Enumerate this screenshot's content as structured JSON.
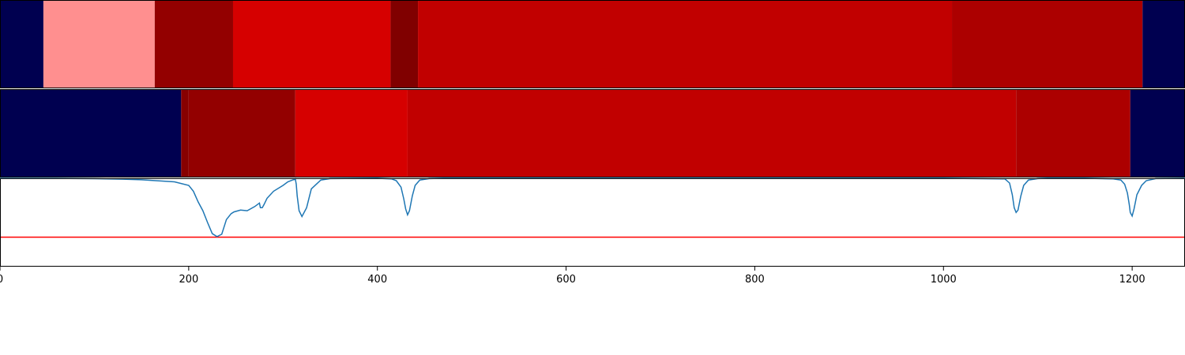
{
  "chart_data": [
    {
      "type": "heatmap",
      "segments": [
        {
          "start": 0,
          "end": 46,
          "color": "#000050"
        },
        {
          "start": 46,
          "end": 164,
          "color": "#ff8f8f"
        },
        {
          "start": 164,
          "end": 247,
          "color": "#930000"
        },
        {
          "start": 247,
          "end": 414,
          "color": "#d60000"
        },
        {
          "start": 414,
          "end": 443,
          "color": "#800000"
        },
        {
          "start": 443,
          "end": 1009,
          "color": "#c10000"
        },
        {
          "start": 1009,
          "end": 1211,
          "color": "#ac0000"
        },
        {
          "start": 1211,
          "end": 1256,
          "color": "#000050"
        }
      ]
    },
    {
      "type": "heatmap",
      "segments": [
        {
          "start": 0,
          "end": 192,
          "color": "#000050"
        },
        {
          "start": 192,
          "end": 200,
          "color": "#870000"
        },
        {
          "start": 200,
          "end": 313,
          "color": "#930000"
        },
        {
          "start": 313,
          "end": 432,
          "color": "#d60000"
        },
        {
          "start": 432,
          "end": 1077,
          "color": "#c10000"
        },
        {
          "start": 1077,
          "end": 1198,
          "color": "#ac0000"
        },
        {
          "start": 1198,
          "end": 1256,
          "color": "#000050"
        }
      ]
    },
    {
      "type": "line",
      "xlim": [
        0,
        1256
      ],
      "ylim": [
        -0.5,
        1.0
      ],
      "xticks": [
        0,
        200,
        400,
        600,
        800,
        1000,
        1200
      ],
      "threshold": 0.0,
      "threshold_color": "#ff0000",
      "line_color": "#1f77b4",
      "series": [
        {
          "x": [
            0,
            60,
            100,
            130,
            150,
            165,
            185,
            200,
            205,
            210,
            215,
            220,
            225,
            230,
            235,
            240,
            245,
            248,
            255,
            262,
            270,
            275,
            276,
            278,
            280,
            283,
            290,
            300,
            305,
            310,
            312,
            313,
            314,
            315,
            317,
            320,
            325,
            330,
            340,
            350,
            400,
            415,
            420,
            425,
            428,
            430,
            432,
            434,
            437,
            440,
            445,
            455,
            470,
            1000,
            1065,
            1070,
            1073,
            1075,
            1077,
            1079,
            1082,
            1085,
            1090,
            1100,
            1110,
            1150,
            1180,
            1188,
            1192,
            1195,
            1197,
            1198,
            1200,
            1202,
            1205,
            1210,
            1215,
            1225,
            1256
          ],
          "y": [
            1.0,
            0.998,
            0.993,
            0.985,
            0.975,
            0.96,
            0.94,
            0.88,
            0.78,
            0.6,
            0.45,
            0.25,
            0.06,
            0.01,
            0.05,
            0.3,
            0.4,
            0.43,
            0.46,
            0.45,
            0.52,
            0.58,
            0.5,
            0.5,
            0.56,
            0.66,
            0.78,
            0.88,
            0.94,
            0.97,
            0.98,
            0.99,
            0.9,
            0.7,
            0.45,
            0.35,
            0.5,
            0.82,
            0.97,
            0.995,
            1.0,
            0.99,
            0.96,
            0.85,
            0.65,
            0.48,
            0.38,
            0.45,
            0.7,
            0.88,
            0.97,
            0.995,
            1.0,
            1.0,
            0.99,
            0.92,
            0.72,
            0.5,
            0.42,
            0.46,
            0.7,
            0.88,
            0.97,
            0.995,
            1.0,
            1.0,
            0.99,
            0.97,
            0.9,
            0.75,
            0.55,
            0.42,
            0.36,
            0.48,
            0.72,
            0.88,
            0.96,
            0.995,
            1.0
          ]
        }
      ]
    }
  ]
}
